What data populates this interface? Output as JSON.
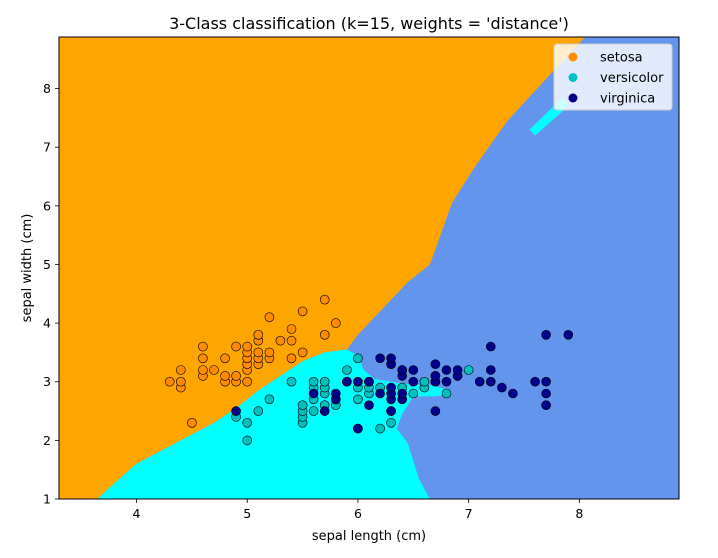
{
  "chart_data": {
    "type": "scatter",
    "title": "3-Class classification (k=15, weights = 'distance')",
    "xlabel": "sepal length (cm)",
    "ylabel": "sepal width (cm)",
    "xlim": [
      3.3,
      8.9
    ],
    "ylim": [
      1.0,
      8.88
    ],
    "x_ticks": [
      4,
      5,
      6,
      7,
      8
    ],
    "y_ticks": [
      1,
      2,
      3,
      4,
      5,
      6,
      7,
      8
    ],
    "grid": false,
    "legend_position": "top-right",
    "background_regions": [
      {
        "class": "setosa",
        "color": "#FFA500"
      },
      {
        "class": "versicolor",
        "color": "#00FFFF"
      },
      {
        "class": "virginica",
        "color": "#6495ED"
      }
    ],
    "series": [
      {
        "name": "setosa",
        "color": "#FF8C00",
        "points": [
          [
            4.3,
            3.0
          ],
          [
            4.4,
            2.9
          ],
          [
            4.4,
            3.0
          ],
          [
            4.4,
            3.2
          ],
          [
            4.5,
            2.3
          ],
          [
            4.6,
            3.1
          ],
          [
            4.6,
            3.2
          ],
          [
            4.6,
            3.4
          ],
          [
            4.6,
            3.6
          ],
          [
            4.7,
            3.2
          ],
          [
            4.8,
            3.0
          ],
          [
            4.8,
            3.1
          ],
          [
            4.8,
            3.4
          ],
          [
            4.9,
            3.0
          ],
          [
            4.9,
            3.1
          ],
          [
            4.9,
            3.6
          ],
          [
            5.0,
            3.0
          ],
          [
            5.0,
            3.2
          ],
          [
            5.0,
            3.3
          ],
          [
            5.0,
            3.4
          ],
          [
            5.0,
            3.5
          ],
          [
            5.0,
            3.6
          ],
          [
            5.1,
            3.3
          ],
          [
            5.1,
            3.4
          ],
          [
            5.1,
            3.5
          ],
          [
            5.1,
            3.7
          ],
          [
            5.1,
            3.8
          ],
          [
            5.2,
            3.4
          ],
          [
            5.2,
            3.5
          ],
          [
            5.2,
            4.1
          ],
          [
            5.3,
            3.7
          ],
          [
            5.4,
            3.4
          ],
          [
            5.4,
            3.7
          ],
          [
            5.4,
            3.9
          ],
          [
            5.5,
            3.5
          ],
          [
            5.5,
            4.2
          ],
          [
            5.7,
            3.8
          ],
          [
            5.7,
            4.4
          ],
          [
            5.8,
            4.0
          ]
        ]
      },
      {
        "name": "versicolor",
        "color": "#00BFBF",
        "points": [
          [
            4.9,
            2.4
          ],
          [
            5.0,
            2.0
          ],
          [
            5.0,
            2.3
          ],
          [
            5.1,
            2.5
          ],
          [
            5.2,
            2.7
          ],
          [
            5.4,
            3.0
          ],
          [
            5.5,
            2.3
          ],
          [
            5.5,
            2.4
          ],
          [
            5.5,
            2.5
          ],
          [
            5.5,
            2.6
          ],
          [
            5.6,
            2.5
          ],
          [
            5.6,
            2.7
          ],
          [
            5.6,
            2.9
          ],
          [
            5.6,
            3.0
          ],
          [
            5.7,
            2.6
          ],
          [
            5.7,
            2.8
          ],
          [
            5.7,
            2.9
          ],
          [
            5.7,
            3.0
          ],
          [
            5.8,
            2.6
          ],
          [
            5.8,
            2.7
          ],
          [
            5.9,
            3.0
          ],
          [
            5.9,
            3.2
          ],
          [
            6.0,
            2.2
          ],
          [
            6.0,
            2.7
          ],
          [
            6.0,
            2.9
          ],
          [
            6.0,
            3.4
          ],
          [
            6.1,
            2.8
          ],
          [
            6.1,
            2.9
          ],
          [
            6.1,
            3.0
          ],
          [
            6.2,
            2.2
          ],
          [
            6.2,
            2.9
          ],
          [
            6.3,
            2.3
          ],
          [
            6.3,
            2.5
          ],
          [
            6.3,
            3.3
          ],
          [
            6.4,
            2.9
          ],
          [
            6.4,
            3.2
          ],
          [
            6.5,
            2.8
          ],
          [
            6.6,
            2.9
          ],
          [
            6.6,
            3.0
          ],
          [
            6.7,
            3.0
          ],
          [
            6.7,
            3.1
          ],
          [
            6.8,
            2.8
          ],
          [
            6.9,
            3.1
          ],
          [
            7.0,
            3.2
          ]
        ]
      },
      {
        "name": "virginica",
        "color": "#00008B",
        "points": [
          [
            4.9,
            2.5
          ],
          [
            5.6,
            2.8
          ],
          [
            5.7,
            2.5
          ],
          [
            5.8,
            2.7
          ],
          [
            5.8,
            2.8
          ],
          [
            5.9,
            3.0
          ],
          [
            6.0,
            2.2
          ],
          [
            6.0,
            3.0
          ],
          [
            6.1,
            2.6
          ],
          [
            6.1,
            3.0
          ],
          [
            6.2,
            2.8
          ],
          [
            6.2,
            3.4
          ],
          [
            6.3,
            2.5
          ],
          [
            6.3,
            2.7
          ],
          [
            6.3,
            2.8
          ],
          [
            6.3,
            2.9
          ],
          [
            6.3,
            3.3
          ],
          [
            6.3,
            3.4
          ],
          [
            6.4,
            2.7
          ],
          [
            6.4,
            2.8
          ],
          [
            6.4,
            3.1
          ],
          [
            6.4,
            3.2
          ],
          [
            6.5,
            3.0
          ],
          [
            6.5,
            3.2
          ],
          [
            6.7,
            2.5
          ],
          [
            6.7,
            3.0
          ],
          [
            6.7,
            3.1
          ],
          [
            6.7,
            3.3
          ],
          [
            6.8,
            3.0
          ],
          [
            6.8,
            3.2
          ],
          [
            6.9,
            3.1
          ],
          [
            6.9,
            3.2
          ],
          [
            7.1,
            3.0
          ],
          [
            7.2,
            3.0
          ],
          [
            7.2,
            3.2
          ],
          [
            7.2,
            3.6
          ],
          [
            7.3,
            2.9
          ],
          [
            7.4,
            2.8
          ],
          [
            7.6,
            3.0
          ],
          [
            7.7,
            2.6
          ],
          [
            7.7,
            2.8
          ],
          [
            7.7,
            3.0
          ],
          [
            7.7,
            3.8
          ],
          [
            7.9,
            3.8
          ]
        ]
      }
    ]
  }
}
